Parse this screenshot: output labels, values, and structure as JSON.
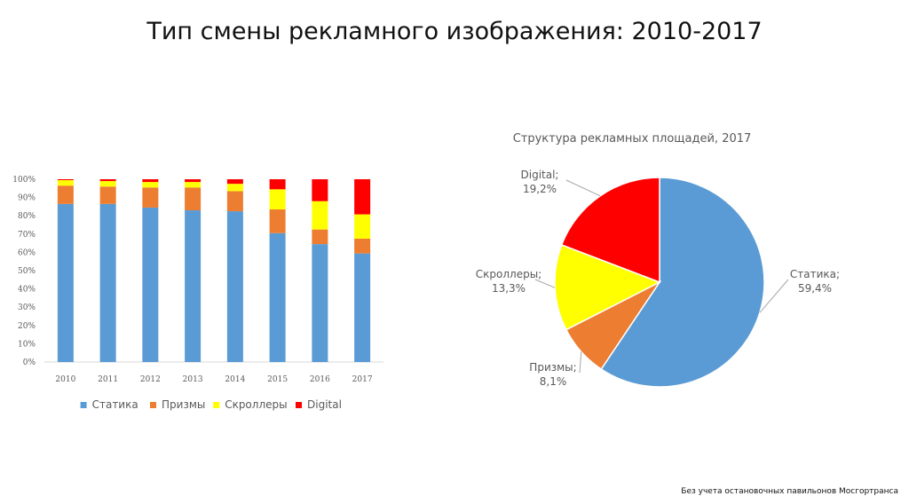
{
  "page": {
    "title": "Тип смены рекламного изображения: 2010-2017",
    "footnote": "Без учета остановочных павильонов Мосгортранса"
  },
  "chart_data": [
    {
      "type": "bar",
      "stacked": "percent",
      "categories": [
        "2010",
        "2011",
        "2012",
        "2013",
        "2014",
        "2015",
        "2016",
        "2017"
      ],
      "series": [
        {
          "name": "Статика",
          "color": "#5b9bd5",
          "values": [
            86.5,
            86.5,
            84.5,
            83.0,
            82.5,
            70.5,
            64.5,
            59.4
          ]
        },
        {
          "name": "Призмы",
          "color": "#ed7d31",
          "values": [
            10.0,
            9.5,
            11.0,
            12.5,
            11.0,
            13.0,
            8.0,
            8.1
          ]
        },
        {
          "name": "Скроллеры",
          "color": "#ffff00",
          "values": [
            3.0,
            3.0,
            3.0,
            3.0,
            4.0,
            11.0,
            15.5,
            13.3
          ]
        },
        {
          "name": "Digital",
          "color": "#ff0000",
          "values": [
            0.5,
            1.0,
            1.5,
            1.5,
            2.5,
            5.5,
            12.0,
            19.2
          ]
        }
      ],
      "yticks": [
        "0%",
        "10%",
        "20%",
        "30%",
        "40%",
        "50%",
        "60%",
        "70%",
        "80%",
        "90%",
        "100%"
      ],
      "ylim": [
        0,
        100
      ],
      "grid": false,
      "legend_position": "bottom"
    },
    {
      "type": "pie",
      "title": "Структура рекламных площадей, 2017",
      "slices": [
        {
          "name": "Статика",
          "value": 59.4,
          "label_name": "Статика;",
          "label_value": "59,4%",
          "color": "#5b9bd5"
        },
        {
          "name": "Призмы",
          "value": 8.1,
          "label_name": "Призмы;",
          "label_value": "8,1%",
          "color": "#ed7d31"
        },
        {
          "name": "Скроллеры",
          "value": 13.3,
          "label_name": "Скроллеры;",
          "label_value": "13,3%",
          "color": "#ffff00"
        },
        {
          "name": "Digital",
          "value": 19.2,
          "label_name": "Digital;",
          "label_value": "19,2%",
          "color": "#ff0000"
        }
      ]
    }
  ]
}
